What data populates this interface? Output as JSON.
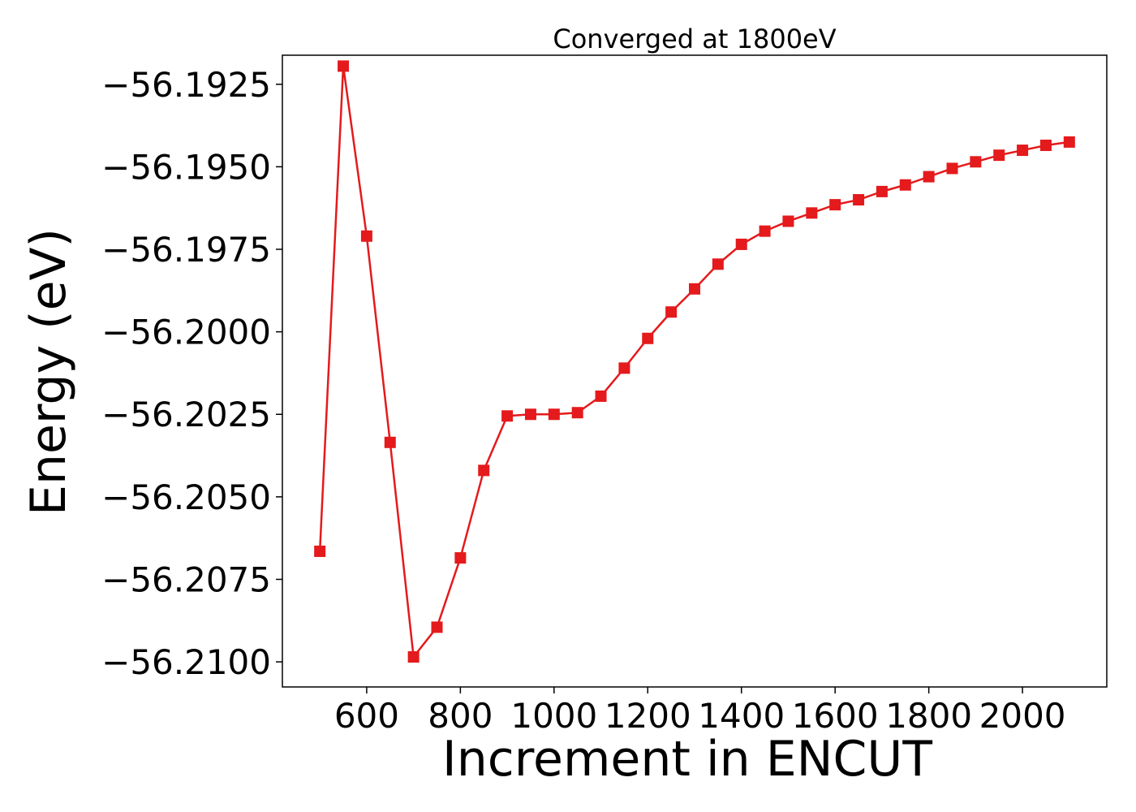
{
  "chart_data": {
    "type": "line",
    "title": "Converged at 1800eV",
    "xlabel": "Increment in ENCUT",
    "ylabel": "Energy (eV)",
    "xlim": [
      420,
      2180
    ],
    "ylim": [
      -56.21076,
      -56.19162
    ],
    "x_ticks": [
      600,
      800,
      1000,
      1200,
      1400,
      1600,
      1800,
      2000
    ],
    "y_ticks": [
      -56.1925,
      -56.195,
      -56.1975,
      -56.2,
      -56.2025,
      -56.205,
      -56.2075,
      -56.21
    ],
    "grid": false,
    "legend": "none",
    "series": [
      {
        "color": "#e41a1c",
        "marker": "square",
        "x": [
          500,
          550,
          600,
          650,
          700,
          750,
          800,
          850,
          900,
          950,
          1000,
          1050,
          1100,
          1150,
          1200,
          1250,
          1300,
          1350,
          1400,
          1450,
          1500,
          1550,
          1600,
          1650,
          1700,
          1750,
          1800,
          1850,
          1900,
          1950,
          2000,
          2050,
          2100
        ],
        "y": [
          -56.20665,
          -56.19195,
          -56.1971,
          -56.20335,
          -56.20985,
          -56.20895,
          -56.20685,
          -56.2042,
          -56.20255,
          -56.2025,
          -56.2025,
          -56.20245,
          -56.20195,
          -56.2011,
          -56.2002,
          -56.1994,
          -56.1987,
          -56.19795,
          -56.19735,
          -56.19695,
          -56.19665,
          -56.1964,
          -56.19615,
          -56.196,
          -56.19575,
          -56.19555,
          -56.1953,
          -56.19505,
          -56.19485,
          -56.19465,
          -56.1945,
          -56.19435,
          -56.19425
        ]
      }
    ]
  }
}
